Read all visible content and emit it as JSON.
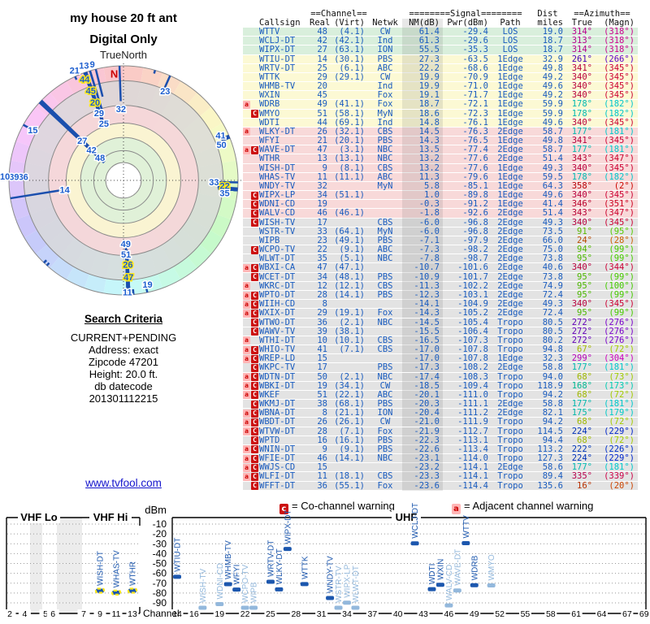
{
  "title": {
    "line1": "my house 20 ft ant",
    "line2": "Digital Only"
  },
  "polar": {
    "north_label": "TrueNorth",
    "n_marker": "N",
    "ring_fracs": [
      1.0,
      0.87,
      0.655,
      0.5,
      0.375,
      0.26,
      0.155
    ],
    "ring_fills": [
      "",
      "#d9d9d9",
      "#f6d7d9",
      "#faf6d2",
      "#def0d8",
      "",
      "#ffffff"
    ],
    "labels": [
      {
        "t": "48",
        "az": 314,
        "f": 0.285
      },
      {
        "t": "42",
        "az": 313.5,
        "f": 0.385
      },
      {
        "t": "27",
        "az": 314,
        "f": 0.5
      },
      {
        "t": "25",
        "az": 341,
        "f": 0.525
      },
      {
        "t": "29",
        "az": 340,
        "f": 0.625
      },
      {
        "t": "20",
        "az": 340,
        "f": 0.725,
        "y": 1
      },
      {
        "t": "45",
        "az": 340,
        "f": 0.835,
        "y": 1
      },
      {
        "t": "44",
        "az": 339,
        "f": 0.945,
        "y": 1
      },
      {
        "t": "21",
        "az": 336,
        "f": 1.05
      },
      {
        "t": "13",
        "az": 341,
        "f": 1.06
      },
      {
        "t": "9",
        "az": 345,
        "f": 1.05
      },
      {
        "t": "32",
        "az": 358,
        "f": 0.625
      },
      {
        "t": "23",
        "az": 25,
        "f": 0.86
      },
      {
        "t": "41",
        "az": 65,
        "f": 0.935
      },
      {
        "t": "50",
        "az": 70,
        "f": 0.91
      },
      {
        "t": "33",
        "az": 91,
        "f": 0.79
      },
      {
        "t": "22",
        "az": 93,
        "f": 0.885,
        "y": 1
      },
      {
        "t": "35",
        "az": 97,
        "f": 0.89
      },
      {
        "t": "19",
        "az": 167,
        "f": 0.93
      },
      {
        "t": "49",
        "az": 178,
        "f": 0.555
      },
      {
        "t": "51",
        "az": 178,
        "f": 0.645
      },
      {
        "t": "26",
        "az": 177,
        "f": 0.735,
        "y": 1
      },
      {
        "t": "47",
        "az": 177,
        "f": 0.845,
        "y": 1
      },
      {
        "t": "11",
        "az": 178,
        "f": 0.975
      },
      {
        "t": "36",
        "az": 272,
        "f": 0.875
      },
      {
        "t": "39",
        "az": 272,
        "f": 0.955
      },
      {
        "t": "10",
        "az": 272,
        "f": 1.035
      },
      {
        "t": "14",
        "az": 261,
        "f": 0.52
      },
      {
        "t": "15",
        "az": 299,
        "f": 0.905
      }
    ]
  },
  "search_criteria": {
    "heading": "Search Criteria",
    "lines": [
      "CURRENT+PENDING",
      "Address: exact",
      "Zipcode 47201",
      "Height: 20.0 ft."
    ],
    "db_label": "db datecode",
    "db_value": "201301112215"
  },
  "link": "www.tvfool.com",
  "table": {
    "header_groups": {
      "channel": "==Channel==",
      "signal": "========Signal========",
      "dist": "Dist",
      "azimuth": "==Azimuth=="
    },
    "columns": [
      "Callsign",
      "Real",
      "(Virt)",
      "Netwk",
      "NM(dB)",
      "Pwr(dBm)",
      "Path",
      "miles",
      "True",
      "(Magn)"
    ],
    "band_row_counts": [
      {
        "n": 3,
        "color": "green"
      },
      {
        "n": 8,
        "color": "yellow"
      },
      {
        "n": 10,
        "color": "pink"
      },
      {
        "n": 30,
        "color": "gray"
      }
    ],
    "rows": [
      [
        "WTTV",
        48,
        "(4.1)",
        "CW",
        61.4,
        -29.4,
        "LOS",
        19.0,
        314,
        318,
        ""
      ],
      [
        "WCLJ-DT",
        42,
        "(42.1)",
        "Ind",
        61.3,
        -29.6,
        "LOS",
        18.7,
        313,
        318,
        ""
      ],
      [
        "WIPX-DT",
        27,
        "(63.1)",
        "ION",
        55.5,
        -35.3,
        "LOS",
        18.7,
        314,
        318,
        ""
      ],
      [
        "WTIU-DT",
        14,
        "(30.1)",
        "PBS",
        27.3,
        -63.5,
        "1Edge",
        32.9,
        261,
        266,
        ""
      ],
      [
        "WRTV-DT",
        25,
        "(6.1)",
        "ABC",
        22.2,
        -68.6,
        "1Edge",
        49.8,
        341,
        345,
        ""
      ],
      [
        "WTTK",
        29,
        "(29.1)",
        "CW",
        19.9,
        -70.9,
        "1Edge",
        49.2,
        340,
        345,
        ""
      ],
      [
        "WHMB-TV",
        20,
        "",
        "Ind",
        19.9,
        -71.0,
        "1Edge",
        49.6,
        340,
        345,
        ""
      ],
      [
        "WXIN",
        45,
        "",
        "Fox",
        19.1,
        -71.7,
        "1Edge",
        49.2,
        340,
        345,
        ""
      ],
      [
        "WDRB",
        49,
        "(41.1)",
        "Fox",
        18.7,
        -72.1,
        "1Edge",
        59.9,
        178,
        182,
        "a"
      ],
      [
        "WMYO",
        51,
        "(58.1)",
        "MyN",
        18.6,
        -72.3,
        "1Edge",
        59.9,
        178,
        182,
        "C"
      ],
      [
        "WDTI",
        44,
        "(69.1)",
        "Ind",
        14.8,
        -76.1,
        "1Edge",
        49.6,
        340,
        345,
        ""
      ],
      [
        "WLKY-DT",
        26,
        "(32.1)",
        "CBS",
        14.5,
        -76.3,
        "2Edge",
        58.7,
        177,
        181,
        "a"
      ],
      [
        "WFYI",
        21,
        "(20.1)",
        "PBS",
        14.3,
        -76.5,
        "1Edge",
        49.8,
        341,
        345,
        ""
      ],
      [
        "WAVE-DT",
        47,
        "(3.1)",
        "NBC",
        13.5,
        -77.4,
        "2Edge",
        58.7,
        177,
        181,
        "aC"
      ],
      [
        "WTHR",
        13,
        "(13.1)",
        "NBC",
        13.2,
        -77.6,
        "2Edge",
        51.4,
        343,
        347,
        ""
      ],
      [
        "WISH-DT",
        9,
        "(8.1)",
        "CBS",
        13.2,
        -77.6,
        "1Edge",
        49.3,
        340,
        345,
        ""
      ],
      [
        "WHAS-TV",
        11,
        "(11.1)",
        "ABC",
        11.3,
        -79.6,
        "1Edge",
        59.5,
        178,
        182,
        ""
      ],
      [
        "WNDY-TV",
        32,
        "",
        "MyN",
        5.8,
        -85.1,
        "1Edge",
        64.3,
        358,
        2,
        ""
      ],
      [
        "WIPX-LP",
        34,
        "(51.1)",
        "",
        1.0,
        -89.8,
        "1Edge",
        49.6,
        340,
        345,
        "C"
      ],
      [
        "WDNI-CD",
        19,
        "",
        "",
        -0.3,
        -91.2,
        "1Edge",
        41.4,
        346,
        351,
        "C"
      ],
      [
        "WALV-CD",
        46,
        "(46.1)",
        "",
        -1.8,
        -92.6,
        "2Edge",
        51.4,
        343,
        347,
        "C"
      ],
      [
        "WISH-TV",
        17,
        "",
        "CBS",
        -6.0,
        -96.8,
        "2Edge",
        49.3,
        340,
        345,
        "C"
      ],
      [
        "WSTR-TV",
        33,
        "(64.1)",
        "MyN",
        -6.0,
        -96.8,
        "2Edge",
        73.5,
        91,
        95,
        ""
      ],
      [
        "WIPB",
        23,
        "(49.1)",
        "PBS",
        -7.1,
        -97.9,
        "2Edge",
        66.0,
        24,
        28,
        ""
      ],
      [
        "WCPO-TV",
        22,
        "(9.1)",
        "ABC",
        -7.3,
        -98.2,
        "2Edge",
        75.0,
        94,
        99,
        "C"
      ],
      [
        "WLWT-DT",
        35,
        "(5.1)",
        "NBC",
        -7.8,
        -98.7,
        "2Edge",
        73.8,
        95,
        99,
        ""
      ],
      [
        "WBXI-CA",
        47,
        "(47.1)",
        "",
        -10.7,
        -101.6,
        "2Edge",
        40.6,
        340,
        344,
        "aC"
      ],
      [
        "WCET-DT",
        34,
        "(48.1)",
        "PBS",
        -10.9,
        -101.7,
        "2Edge",
        73.8,
        95,
        99,
        "C"
      ],
      [
        "WKRC-DT",
        12,
        "(12.1)",
        "CBS",
        -11.3,
        -102.2,
        "2Edge",
        74.9,
        95,
        100,
        "a"
      ],
      [
        "WPTO-DT",
        28,
        "(14.1)",
        "PBS",
        -12.3,
        -103.1,
        "2Edge",
        72.4,
        95,
        99,
        "aC"
      ],
      [
        "WIIH-CD",
        8,
        "",
        "",
        -14.1,
        -104.9,
        "2Edge",
        49.3,
        340,
        345,
        "aC"
      ],
      [
        "WXIX-DT",
        29,
        "(19.1)",
        "Fox",
        -14.3,
        -105.2,
        "2Edge",
        72.4,
        95,
        99,
        "aC"
      ],
      [
        "WTWO-DT",
        36,
        "(2.1)",
        "NBC",
        -14.5,
        -105.4,
        "Tropo",
        80.5,
        272,
        276,
        "C"
      ],
      [
        "WAWV-TV",
        39,
        "(38.1)",
        "",
        -15.5,
        -106.4,
        "Tropo",
        80.5,
        272,
        276,
        "C"
      ],
      [
        "WTHI-DT",
        10,
        "(10.1)",
        "CBS",
        -16.5,
        -107.3,
        "Tropo",
        80.2,
        272,
        276,
        "a"
      ],
      [
        "WHIO-TV",
        41,
        "(7.1)",
        "CBS",
        -17.0,
        -107.8,
        "Tropo",
        94.8,
        67,
        72,
        "aC"
      ],
      [
        "WREP-LD",
        15,
        "",
        "",
        -17.0,
        -107.8,
        "1Edge",
        32.3,
        299,
        304,
        "aC"
      ],
      [
        "WKPC-TV",
        17,
        "",
        "PBS",
        -17.3,
        -108.2,
        "2Edge",
        58.8,
        177,
        181,
        "C"
      ],
      [
        "WDTN-DT",
        50,
        "(2.1)",
        "NBC",
        -17.4,
        -108.3,
        "Tropo",
        94.0,
        68,
        73,
        "aC"
      ],
      [
        "WBKI-DT",
        19,
        "(34.1)",
        "CW",
        -18.5,
        -109.4,
        "Tropo",
        118.9,
        168,
        173,
        "aC"
      ],
      [
        "WKEF",
        51,
        "(22.1)",
        "ABC",
        -20.1,
        -111.0,
        "Tropo",
        94.2,
        68,
        72,
        "aC"
      ],
      [
        "WKMJ-DT",
        38,
        "(68.1)",
        "PBS",
        -20.3,
        -111.1,
        "2Edge",
        58.8,
        177,
        181,
        "C"
      ],
      [
        "WBNA-DT",
        8,
        "(21.1)",
        "ION",
        -20.4,
        -111.2,
        "2Edge",
        82.1,
        175,
        179,
        "aC"
      ],
      [
        "WBDT-DT",
        26,
        "(26.1)",
        "CW",
        -21.0,
        -111.9,
        "Tropo",
        94.2,
        68,
        72,
        "aC"
      ],
      [
        "WTVW-DT",
        28,
        "(7.1)",
        "Fox",
        -21.9,
        -112.7,
        "Tropo",
        114.5,
        224,
        229,
        "aC"
      ],
      [
        "WPTD",
        16,
        "(16.1)",
        "PBS",
        -22.3,
        -113.1,
        "Tropo",
        94.4,
        68,
        72,
        "C"
      ],
      [
        "WNIN-DT",
        9,
        "(9.1)",
        "PBS",
        -22.6,
        -113.4,
        "Tropo",
        113.2,
        222,
        226,
        "aC"
      ],
      [
        "WFIE-DT",
        46,
        "(14.1)",
        "NBC",
        -23.1,
        -114.0,
        "Tropo",
        127.3,
        224,
        229,
        "aC"
      ],
      [
        "WWJS-CD",
        15,
        "",
        "",
        -23.2,
        -114.1,
        "2Edge",
        58.6,
        177,
        181,
        "aC"
      ],
      [
        "WLFI-DT",
        11,
        "(18.1)",
        "CBS",
        -23.3,
        -114.1,
        "Tropo",
        89.4,
        335,
        339,
        "aC"
      ],
      [
        "WFFT-DT",
        36,
        "(55.1)",
        "Fox",
        -23.6,
        -114.4,
        "Tropo",
        135.6,
        16,
        20,
        "C"
      ]
    ]
  },
  "legend": {
    "co": {
      "letter": "c",
      "text": "= Co-channel warning"
    },
    "adj": {
      "letter": "a",
      "text": "= Adjacent channel warning"
    }
  },
  "bottom_chart": {
    "type": "bar",
    "ylabel": "dBm",
    "xlabel": "Channel",
    "bands": {
      "vhf_lo": "VHF Lo",
      "vhf_hi": "VHF Hi",
      "uhf": "UHF"
    },
    "yticks": [
      -10,
      -20,
      -30,
      -40,
      -50,
      -60,
      -70,
      -80,
      -90
    ],
    "vhf_tick_labels": [
      2,
      4,
      5,
      6,
      7,
      9,
      11,
      13
    ],
    "uhf_tick_labels": [
      14,
      16,
      19,
      22,
      25,
      28,
      31,
      34,
      37,
      40,
      43,
      46,
      49,
      52,
      55,
      58,
      61,
      64,
      67,
      69
    ],
    "yellow_outline_bars": [
      "WISH-DT",
      "WHAS-TV",
      "WTHR"
    ],
    "pwr_cutoff_dbm": -99,
    "colors": {
      "bar_strong": "#1c57ae",
      "bar_weak": "#93b8dc",
      "yellow": "#ffe81a",
      "warn_red": "#cc1111",
      "warn_pink": "#ffb6b6",
      "table_blue": "#1a5cbf"
    }
  }
}
